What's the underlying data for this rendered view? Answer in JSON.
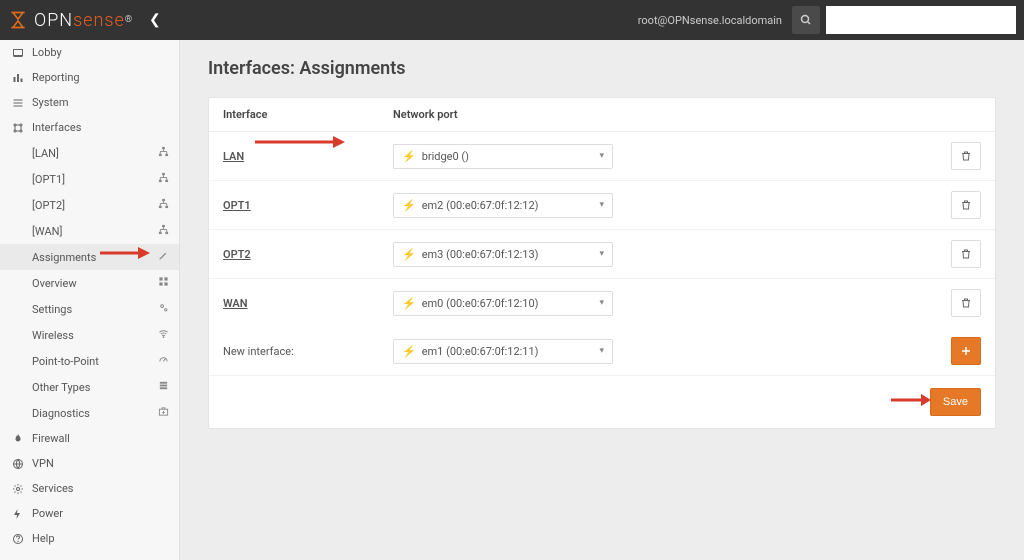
{
  "brand": {
    "name_left": "OPN",
    "name_right": "sense",
    "reg": "®"
  },
  "topbar": {
    "user": "root@OPNsense.localdomain"
  },
  "sidebar": {
    "items": [
      {
        "label": "Lobby",
        "sub": false
      },
      {
        "label": "Reporting",
        "sub": false
      },
      {
        "label": "System",
        "sub": false
      },
      {
        "label": "Interfaces",
        "sub": false
      },
      {
        "label": "[LAN]",
        "sub": true,
        "rico": "sitemap"
      },
      {
        "label": "[OPT1]",
        "sub": true,
        "rico": "sitemap"
      },
      {
        "label": "[OPT2]",
        "sub": true,
        "rico": "sitemap"
      },
      {
        "label": "[WAN]",
        "sub": true,
        "rico": "sitemap"
      },
      {
        "label": "Assignments",
        "sub": true,
        "rico": "pencil",
        "active": true
      },
      {
        "label": "Overview",
        "sub": true,
        "rico": "grid"
      },
      {
        "label": "Settings",
        "sub": true,
        "rico": "cogs"
      },
      {
        "label": "Wireless",
        "sub": true,
        "rico": "wifi"
      },
      {
        "label": "Point-to-Point",
        "sub": true,
        "rico": "meter"
      },
      {
        "label": "Other Types",
        "sub": true,
        "rico": "stack"
      },
      {
        "label": "Diagnostics",
        "sub": true,
        "rico": "medkit"
      },
      {
        "label": "Firewall",
        "sub": false
      },
      {
        "label": "VPN",
        "sub": false
      },
      {
        "label": "Services",
        "sub": false
      },
      {
        "label": "Power",
        "sub": false
      },
      {
        "label": "Help",
        "sub": false
      }
    ]
  },
  "page": {
    "title": "Interfaces: Assignments"
  },
  "table": {
    "col_interface": "Interface",
    "col_port": "Network port",
    "rows": [
      {
        "name": "LAN",
        "port": "bridge0 ()",
        "arrow": true
      },
      {
        "name": "OPT1",
        "port": "em2 (00:e0:67:0f:12:12)",
        "arrow": false
      },
      {
        "name": "OPT2",
        "port": "em3 (00:e0:67:0f:12:13)",
        "arrow": false
      },
      {
        "name": "WAN",
        "port": "em0 (00:e0:67:0f:12:10)",
        "arrow": false
      }
    ],
    "new_label": "New interface:",
    "new_port": "em1 (00:e0:67:0f:12:11)",
    "save_label": "Save"
  },
  "colors": {
    "accent": "#e57928",
    "arrow": "#d93a2b"
  }
}
